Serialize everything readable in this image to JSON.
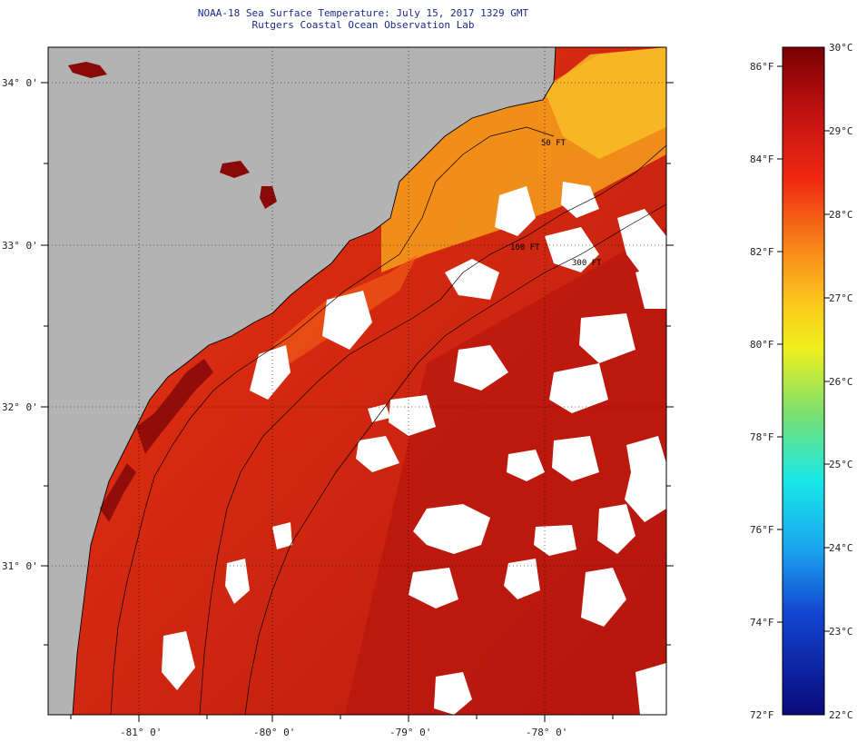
{
  "title": {
    "line1": "NOAA-18 Sea Surface Temperature:  July 15, 2017 1329 GMT",
    "line2": "Rutgers Coastal Ocean Observation Lab"
  },
  "map": {
    "lat_labels": [
      "34° 0'",
      "33° 0'",
      "32° 0'",
      "31° 0'"
    ],
    "lon_labels": [
      "-81° 0'",
      "-80° 0'",
      "-79° 0'",
      "-78° 0'"
    ],
    "isobath_labels": [
      "50 FT",
      "100 FT",
      "300 FT"
    ],
    "colors": {
      "land": "#b3b3b3",
      "cloud": "#ffffff",
      "warm_water": "#d62a10",
      "hot_water": "#a8120c",
      "nearshore": "#f7a81e",
      "coastline": "#000000"
    }
  },
  "colorbar": {
    "fahrenheit_labels": [
      "86°F",
      "84°F",
      "82°F",
      "80°F",
      "78°F",
      "76°F",
      "74°F",
      "72°F"
    ],
    "celsius_labels": [
      "30°C",
      "29°C",
      "28°C",
      "27°C",
      "26°C",
      "25°C",
      "24°C",
      "23°C",
      "22°C"
    ],
    "min_c": 22,
    "max_c": 30
  }
}
